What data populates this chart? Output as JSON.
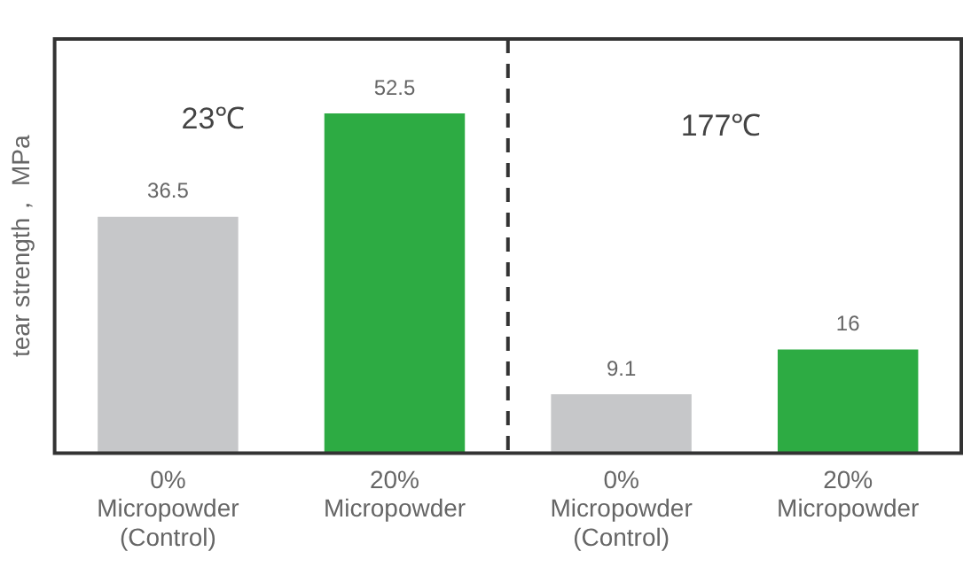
{
  "chart_data": {
    "type": "bar",
    "ylabel": "tear strength， MPa",
    "categories": [
      "0%\nMicropowder\n(Control)",
      "20%\nMicropowder",
      "0%\nMicropowder\n(Control)",
      "20%\nMicropowder"
    ],
    "values": [
      36.5,
      52.5,
      9.1,
      16
    ],
    "colors": [
      "#c6c7c9",
      "#2dab43",
      "#c6c7c9",
      "#2dab43"
    ],
    "ylim": [
      0,
      64
    ],
    "tick_labels": "x",
    "data_labels": true,
    "grid": false,
    "legend": false,
    "annotations": [
      "23℃",
      "177℃"
    ]
  }
}
